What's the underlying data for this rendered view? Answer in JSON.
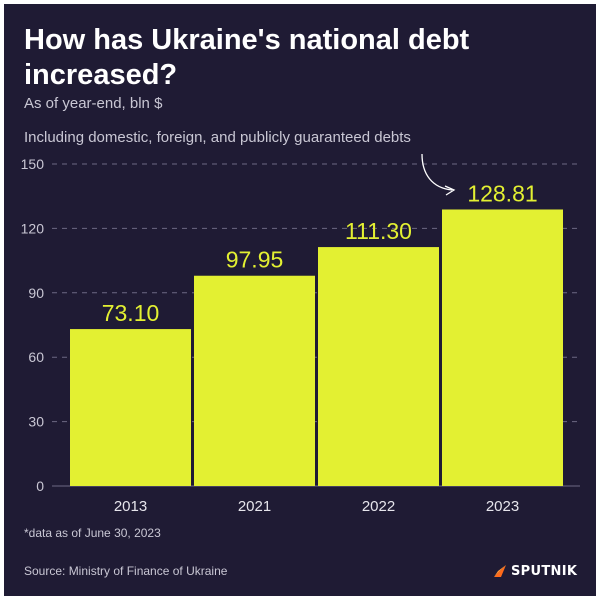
{
  "header": {
    "title": "How has Ukraine's national debt increased?",
    "subtitle": "As of year-end, bln $",
    "note": "Including domestic, foreign, and publicly guaranteed debts"
  },
  "footer": {
    "footnote": "*data as of June 30, 2023",
    "source": "Source: Ministry of Finance of Ukraine",
    "brand": "SPUTNIK"
  },
  "colors": {
    "background": "#1f1b34",
    "bar": "#e3f032",
    "text": "#ffffff",
    "muted": "#c9c7d4"
  },
  "chart_data": {
    "type": "bar",
    "title": "How has Ukraine's national debt increased?",
    "subtitle": "As of year-end, bln $",
    "annotation": "Including domestic, foreign, and publicly guaranteed debts",
    "categories": [
      "2013",
      "2021",
      "2022",
      "2023"
    ],
    "values": [
      73.1,
      97.95,
      111.3,
      128.81
    ],
    "value_labels": [
      "73.10",
      "97.95",
      "111.30",
      "128.81"
    ],
    "yticks": [
      "0",
      "30",
      "60",
      "90",
      "120",
      "150"
    ],
    "ylim": [
      0,
      150
    ],
    "grid": true,
    "legend": "none"
  }
}
